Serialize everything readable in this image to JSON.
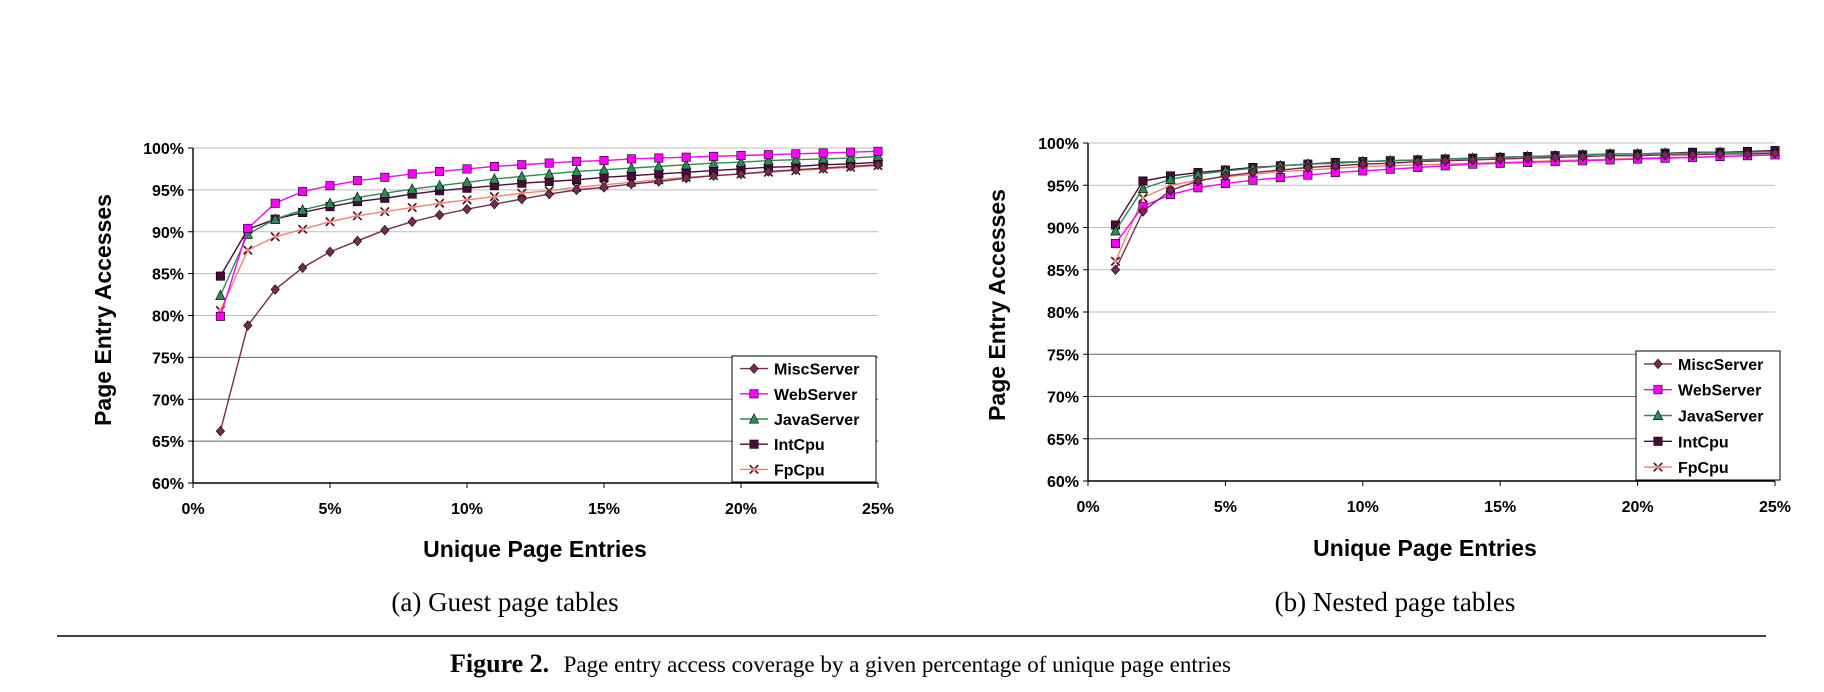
{
  "figure": {
    "caption_label": "Figure 2.",
    "caption_text": "Page entry access coverage by a given percentage of unique page entries"
  },
  "chart_data": [
    {
      "type": "line",
      "subcaption": "(a) Guest page tables",
      "xlabel": "Unique Page Entries",
      "ylabel": "Page Entry Accesses",
      "x": [
        1,
        2,
        3,
        4,
        5,
        6,
        7,
        8,
        9,
        10,
        11,
        12,
        13,
        14,
        15,
        16,
        17,
        18,
        19,
        20,
        21,
        22,
        23,
        24,
        25
      ],
      "xlim": [
        0,
        25
      ],
      "ylim": [
        60,
        100
      ],
      "xticks": [
        "0%",
        "5%",
        "10%",
        "15%",
        "20%",
        "25%"
      ],
      "yticks": [
        "60%",
        "65%",
        "70%",
        "75%",
        "80%",
        "85%",
        "90%",
        "95%",
        "100%"
      ],
      "grid": "horizontal",
      "legend": "bottom-right",
      "series": [
        {
          "name": "MiscServer",
          "color": "#7a2a52",
          "marker": "diamond",
          "values": [
            66.2,
            78.8,
            83.1,
            85.7,
            87.6,
            88.9,
            90.2,
            91.2,
            92.0,
            92.7,
            93.3,
            93.9,
            94.5,
            95.0,
            95.3,
            95.7,
            96.0,
            96.4,
            96.7,
            96.9,
            97.2,
            97.4,
            97.6,
            97.8,
            98.0
          ]
        },
        {
          "name": "WebServer",
          "color": "#ff00ff",
          "marker": "square",
          "values": [
            79.9,
            90.4,
            93.4,
            94.8,
            95.5,
            96.1,
            96.5,
            96.9,
            97.2,
            97.5,
            97.8,
            98.0,
            98.2,
            98.4,
            98.5,
            98.7,
            98.8,
            98.9,
            99.0,
            99.1,
            99.2,
            99.3,
            99.4,
            99.5,
            99.6
          ]
        },
        {
          "name": "JavaServer",
          "color": "#2e8b57",
          "marker": "triangle",
          "values": [
            82.4,
            89.7,
            91.5,
            92.6,
            93.4,
            94.1,
            94.6,
            95.1,
            95.5,
            95.9,
            96.3,
            96.6,
            96.9,
            97.2,
            97.4,
            97.6,
            97.8,
            98.0,
            98.2,
            98.3,
            98.5,
            98.6,
            98.7,
            98.8,
            99.0
          ]
        },
        {
          "name": "IntCpu",
          "color": "#4b0a3c",
          "marker": "square",
          "values": [
            84.7,
            90.3,
            91.5,
            92.3,
            93.0,
            93.6,
            94.0,
            94.5,
            94.9,
            95.2,
            95.5,
            95.8,
            96.0,
            96.2,
            96.5,
            96.7,
            96.9,
            97.1,
            97.3,
            97.5,
            97.7,
            97.8,
            98.0,
            98.1,
            98.3
          ]
        },
        {
          "name": "FpCpu",
          "color": "#f08070",
          "marker": "x",
          "values": [
            80.6,
            87.8,
            89.4,
            90.3,
            91.2,
            91.9,
            92.4,
            92.9,
            93.4,
            93.8,
            94.2,
            94.6,
            94.9,
            95.3,
            95.6,
            95.9,
            96.2,
            96.5,
            96.7,
            96.9,
            97.1,
            97.3,
            97.5,
            97.7,
            97.9
          ]
        }
      ]
    },
    {
      "type": "line",
      "subcaption": "(b) Nested page tables",
      "xlabel": "Unique Page Entries",
      "ylabel": "Page Entry Accesses",
      "x": [
        1,
        2,
        3,
        4,
        5,
        6,
        7,
        8,
        9,
        10,
        11,
        12,
        13,
        14,
        15,
        16,
        17,
        18,
        19,
        20,
        21,
        22,
        23,
        24,
        25
      ],
      "xlim": [
        0,
        25
      ],
      "ylim": [
        60,
        100
      ],
      "xticks": [
        "0%",
        "5%",
        "10%",
        "15%",
        "20%",
        "25%"
      ],
      "yticks": [
        "60%",
        "65%",
        "70%",
        "75%",
        "80%",
        "85%",
        "90%",
        "95%",
        "100%"
      ],
      "grid": "horizontal",
      "legend": "bottom-right",
      "series": [
        {
          "name": "MiscServer",
          "color": "#7a2a52",
          "marker": "diamond",
          "values": [
            85.0,
            91.9,
            94.4,
            95.5,
            96.1,
            96.5,
            96.8,
            97.1,
            97.3,
            97.5,
            97.6,
            97.8,
            97.9,
            98.0,
            98.1,
            98.2,
            98.3,
            98.4,
            98.5,
            98.5,
            98.6,
            98.6,
            98.7,
            98.7,
            98.8
          ]
        },
        {
          "name": "WebServer",
          "color": "#ff00ff",
          "marker": "square",
          "values": [
            88.1,
            92.5,
            93.9,
            94.7,
            95.2,
            95.6,
            95.9,
            96.2,
            96.5,
            96.7,
            96.9,
            97.1,
            97.3,
            97.5,
            97.6,
            97.7,
            97.8,
            97.9,
            98.0,
            98.1,
            98.2,
            98.3,
            98.4,
            98.5,
            98.6
          ]
        },
        {
          "name": "JavaServer",
          "color": "#2e8b57",
          "marker": "triangle",
          "values": [
            89.6,
            94.6,
            95.7,
            96.3,
            96.7,
            97.0,
            97.3,
            97.5,
            97.6,
            97.8,
            97.9,
            98.0,
            98.1,
            98.2,
            98.3,
            98.4,
            98.5,
            98.6,
            98.7,
            98.7,
            98.8,
            98.8,
            98.9,
            98.9,
            99.0
          ]
        },
        {
          "name": "IntCpu",
          "color": "#4b0a3c",
          "marker": "square",
          "values": [
            90.3,
            95.5,
            96.1,
            96.5,
            96.8,
            97.1,
            97.3,
            97.5,
            97.7,
            97.8,
            97.9,
            98.0,
            98.1,
            98.2,
            98.3,
            98.4,
            98.5,
            98.6,
            98.7,
            98.7,
            98.8,
            98.9,
            98.9,
            99.0,
            99.1
          ]
        },
        {
          "name": "FpCpu",
          "color": "#f08070",
          "marker": "x",
          "values": [
            86.0,
            93.5,
            95.0,
            95.6,
            96.0,
            96.3,
            96.6,
            96.8,
            97.0,
            97.2,
            97.3,
            97.4,
            97.5,
            97.6,
            97.7,
            97.8,
            97.9,
            98.0,
            98.1,
            98.2,
            98.3,
            98.3,
            98.4,
            98.5,
            98.6
          ]
        }
      ]
    }
  ]
}
